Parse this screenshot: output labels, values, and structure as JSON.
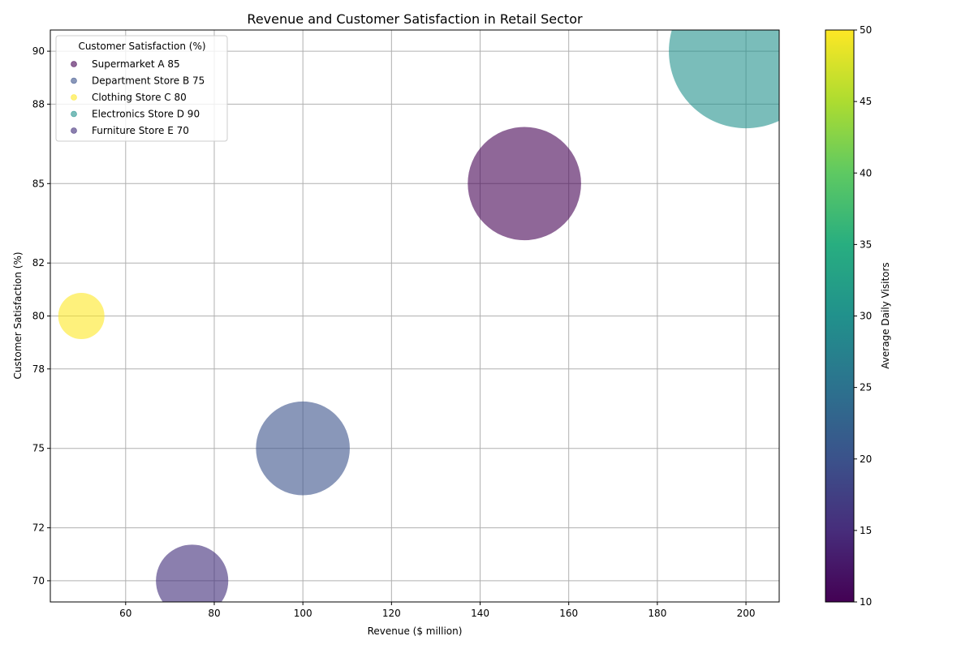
{
  "chart_data": {
    "type": "scatter",
    "title": "Revenue and Customer Satisfaction in Retail Sector",
    "xlabel": "Revenue ($ million)",
    "ylabel": "Customer Satisfaction (%)",
    "xlim": [
      43,
      207.5
    ],
    "ylim": [
      69.2,
      90.8
    ],
    "xticks": [
      60,
      80,
      100,
      120,
      140,
      160,
      180,
      200
    ],
    "yticks": [
      70,
      72,
      75,
      78,
      80,
      82,
      85,
      88,
      90
    ],
    "grid": true,
    "legend": {
      "title": "Customer Satisfaction (%)",
      "placement": "top-left",
      "entries": [
        "Supermarket A 85",
        "Department Store B 75",
        "Clothing Store C 80",
        "Electronics Store D 90",
        "Furniture Store E 70"
      ]
    },
    "colorbar": {
      "label": "Average Daily Visitors",
      "min": 10,
      "max": 50,
      "ticks": [
        10,
        15,
        20,
        25,
        30,
        35,
        40,
        45,
        50
      ],
      "colormap": "viridis"
    },
    "points": [
      {
        "label": "Supermarket A",
        "x": 150,
        "y": 85,
        "bubble_size": 0.54,
        "color": "#440154"
      },
      {
        "label": "Department Store B",
        "x": 100,
        "y": 75,
        "bubble_size": 0.37,
        "color": "#3b528b"
      },
      {
        "label": "Clothing Store C",
        "x": 50,
        "y": 80,
        "bubble_size": 0.09,
        "color": "#fde725"
      },
      {
        "label": "Electronics Store D",
        "x": 200,
        "y": 90,
        "bubble_size": 1.0,
        "color": "#21918c"
      },
      {
        "label": "Furniture Store E",
        "x": 75,
        "y": 70,
        "bubble_size": 0.22,
        "color": "#3e2a78"
      }
    ],
    "marker_alpha": 0.6
  }
}
